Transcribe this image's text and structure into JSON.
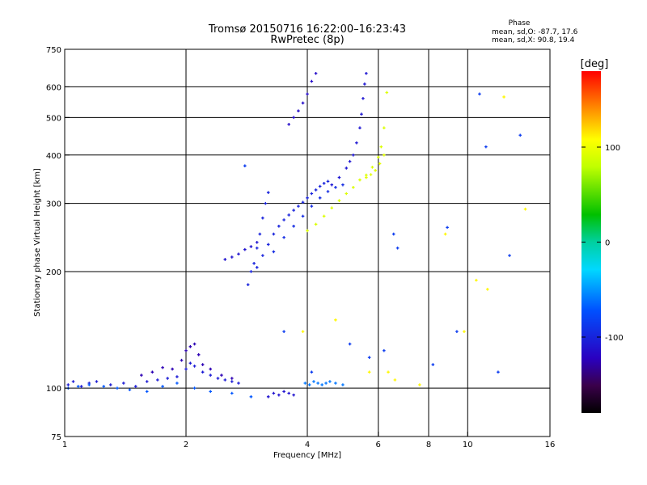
{
  "chart_data": {
    "type": "scatter",
    "title": "Tromsø 20150716 16:22:00–16:23:43",
    "subtitle": "RwPretec (8p)",
    "xlabel": "Frequency [MHz]",
    "ylabel": "Stationary phase Virtual Height [km]",
    "x_scale": "log",
    "y_scale": "log",
    "xlim": [
      1,
      16
    ],
    "ylim": [
      75,
      750
    ],
    "x_ticks": [
      1,
      2,
      4,
      6,
      8,
      10,
      16
    ],
    "x_tick_labels": [
      "1",
      "2",
      "4",
      "6",
      "8",
      "10",
      "16"
    ],
    "x_gridlines": [
      2,
      4,
      6,
      8,
      10
    ],
    "y_ticks": [
      75,
      100,
      200,
      300,
      400,
      500,
      600,
      750
    ],
    "y_tick_labels": [
      "75",
      "100",
      "200",
      "300",
      "400",
      "500",
      "600",
      "750"
    ],
    "y_gridlines": [
      100,
      200,
      300,
      400,
      500,
      600
    ],
    "grid": true,
    "stats": {
      "heading": "Phase",
      "line_o": "mean, sd,O: -87.7, 17.6",
      "line_x": "mean, sd,X:  90.8, 19.4"
    },
    "colorbar": {
      "label": "[deg]",
      "range": [
        -180,
        180
      ],
      "ticks": [
        100,
        0,
        -100
      ],
      "tick_labels": [
        "100",
        "0",
        "-100"
      ],
      "placement": "right"
    },
    "traces": [
      {
        "kind": "o-trace",
        "phase": -105,
        "x": [
          1.02,
          1.05,
          1.1,
          1.15,
          1.2,
          1.3,
          1.4,
          1.5,
          1.6,
          1.7,
          1.8,
          1.9,
          2.0,
          2.05,
          2.1,
          2.2,
          2.3,
          2.4,
          2.5,
          2.6,
          2.7
        ],
        "y": [
          102,
          104,
          101,
          103,
          104,
          102,
          103,
          101,
          104,
          105,
          106,
          107,
          112,
          116,
          114,
          110,
          108,
          106,
          105,
          104,
          103
        ]
      },
      {
        "kind": "o-trace",
        "phase": -125,
        "x": [
          1.55,
          1.65,
          1.75,
          1.85,
          1.95,
          2.0,
          2.05,
          2.1,
          2.15,
          2.2,
          2.3,
          2.45,
          2.6
        ],
        "y": [
          108,
          110,
          113,
          112,
          118,
          125,
          128,
          130,
          122,
          115,
          112,
          108,
          106
        ]
      },
      {
        "kind": "o-trace",
        "phase": -70,
        "x": [
          1.02,
          1.08,
          1.15,
          1.25,
          1.35,
          1.45,
          1.6,
          1.75,
          1.9,
          2.1,
          2.3,
          2.6,
          2.9
        ],
        "y": [
          100,
          101,
          102,
          101,
          100,
          99,
          98,
          101,
          103,
          100,
          98,
          97,
          95
        ]
      },
      {
        "kind": "o-trace",
        "phase": -110,
        "x": [
          3.2,
          3.3,
          3.4,
          3.5,
          3.6,
          3.7
        ],
        "y": [
          95,
          97,
          96,
          98,
          97,
          96
        ]
      },
      {
        "kind": "o-trace",
        "phase": -60,
        "x": [
          3.95,
          4.05,
          4.15,
          4.25,
          4.35,
          4.45,
          4.55,
          4.7,
          4.9
        ],
        "y": [
          103,
          102,
          104,
          103,
          102,
          103,
          104,
          103,
          102
        ]
      },
      {
        "kind": "o-trace",
        "phase": -100,
        "x": [
          2.85,
          2.9,
          2.95,
          3.0,
          3.05,
          3.1,
          3.15,
          3.2
        ],
        "y": [
          185,
          200,
          210,
          230,
          250,
          275,
          300,
          320
        ]
      },
      {
        "kind": "o-trace",
        "phase": -100,
        "x": [
          3.0,
          3.1,
          3.2,
          3.3,
          3.4,
          3.5,
          3.6,
          3.7,
          3.8,
          3.9,
          4.0,
          4.1,
          4.2,
          4.3,
          4.4,
          4.5
        ],
        "y": [
          205,
          220,
          235,
          250,
          262,
          272,
          280,
          288,
          295,
          302,
          310,
          318,
          325,
          332,
          338,
          342
        ]
      },
      {
        "kind": "o-trace",
        "phase": -95,
        "x": [
          3.3,
          3.5,
          3.7,
          3.9,
          4.1,
          4.3,
          4.5,
          4.7,
          4.9
        ],
        "y": [
          225,
          245,
          262,
          278,
          295,
          310,
          322,
          330,
          335
        ]
      },
      {
        "kind": "o-trace",
        "phase": -108,
        "x": [
          4.6,
          4.8,
          5.0,
          5.1,
          5.2,
          5.3,
          5.4,
          5.45,
          5.5,
          5.55,
          5.6
        ],
        "y": [
          335,
          350,
          370,
          385,
          400,
          430,
          470,
          510,
          560,
          610,
          650
        ]
      },
      {
        "kind": "o-trace",
        "phase": -110,
        "x": [
          2.5,
          2.6,
          2.7,
          2.8,
          2.9,
          3.0
        ],
        "y": [
          215,
          218,
          222,
          228,
          232,
          238
        ]
      },
      {
        "kind": "o-trace",
        "phase": -115,
        "x": [
          3.6,
          3.7,
          3.8,
          3.9,
          4.0,
          4.1,
          4.2
        ],
        "y": [
          480,
          500,
          520,
          545,
          575,
          620,
          650
        ]
      },
      {
        "kind": "x-trace",
        "phase": 92,
        "x": [
          4.0,
          4.2,
          4.4,
          4.6,
          4.8,
          5.0,
          5.2,
          5.4,
          5.6,
          5.8,
          6.0,
          6.1,
          6.2,
          6.3
        ],
        "y": [
          255,
          265,
          278,
          292,
          305,
          318,
          330,
          345,
          355,
          372,
          395,
          420,
          470,
          580
        ]
      },
      {
        "kind": "x-trace",
        "phase": 95,
        "x": [
          5.6,
          5.75,
          5.9,
          6.05,
          6.2
        ],
        "y": [
          350,
          356,
          365,
          380,
          400
        ]
      },
      {
        "kind": "scattered",
        "phase": -85,
        "x": [
          2.8,
          3.5,
          4.1,
          5.1,
          5.7,
          6.2,
          6.55,
          6.7,
          8.2,
          8.9,
          9.4,
          10.7,
          11.1,
          11.9,
          12.7,
          13.5
        ],
        "y": [
          375,
          140,
          110,
          130,
          120,
          125,
          250,
          230,
          115,
          260,
          140,
          575,
          420,
          110,
          220,
          450
        ]
      },
      {
        "kind": "scattered",
        "phase": 110,
        "x": [
          3.9,
          4.7,
          5.7,
          6.35,
          6.6,
          7.6,
          8.8,
          9.8,
          10.5,
          11.2,
          12.3,
          13.9
        ],
        "y": [
          140,
          150,
          110,
          110,
          105,
          102,
          250,
          140,
          190,
          180,
          565,
          290
        ]
      }
    ]
  }
}
